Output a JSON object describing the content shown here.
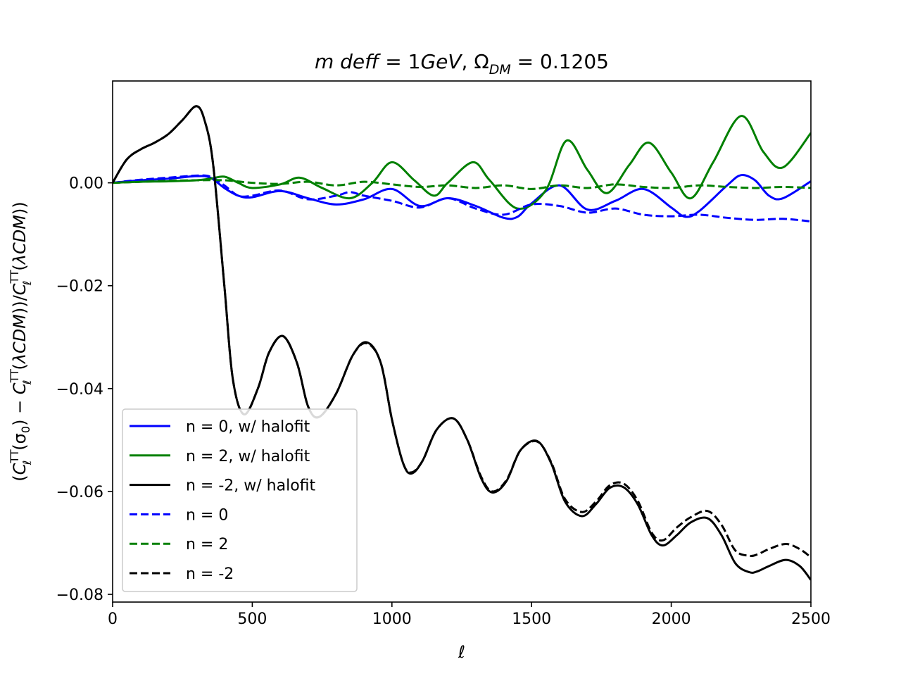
{
  "chart_data": {
    "type": "line",
    "title": "m deff = 1GeV, Ω_DM = 0.1205",
    "xlabel": "ℓ",
    "ylabel": "(C_ℓ^TT(σ0) − C_ℓ^TT(λCDM))/C_ℓ^TT(λCDM))",
    "xlim": [
      0,
      2500
    ],
    "ylim": [
      -0.0815,
      0.0198
    ],
    "xticks": [
      0,
      500,
      1000,
      1500,
      2000,
      2500
    ],
    "xtick_labels": [
      "0",
      "500",
      "1000",
      "1500",
      "2000",
      "2500"
    ],
    "yticks": [
      0.0,
      -0.02,
      -0.04,
      -0.06,
      -0.08
    ],
    "ytick_labels": [
      "0.00",
      "−0.02",
      "−0.04",
      "−0.06",
      "−0.08"
    ],
    "grid": false,
    "legend_position": "lower-left",
    "series": [
      {
        "name": "n = 0, w/ halofit",
        "color": "#0000ff",
        "dash": "solid",
        "x": [
          0,
          100,
          200,
          300,
          350,
          400,
          450,
          500,
          600,
          700,
          800,
          900,
          1000,
          1100,
          1200,
          1300,
          1400,
          1450,
          1500,
          1600,
          1700,
          1800,
          1900,
          2000,
          2050,
          2100,
          2200,
          2250,
          2300,
          2350,
          2400,
          2500
        ],
        "y": [
          0.0,
          0.0005,
          0.0008,
          0.0013,
          0.001,
          -0.001,
          -0.0025,
          -0.0028,
          -0.0016,
          -0.003,
          -0.0042,
          -0.0032,
          -0.0012,
          -0.0045,
          -0.003,
          -0.0045,
          -0.0068,
          -0.0066,
          -0.004,
          -0.0005,
          -0.0052,
          -0.0035,
          -0.0012,
          -0.0048,
          -0.0066,
          -0.0055,
          -0.0005,
          0.0015,
          0.0005,
          -0.0025,
          -0.003,
          0.0003
        ]
      },
      {
        "name": "n = 2, w/ halofit",
        "color": "#008000",
        "dash": "solid",
        "x": [
          0,
          100,
          200,
          300,
          350,
          400,
          450,
          500,
          600,
          670,
          750,
          850,
          930,
          1000,
          1080,
          1150,
          1200,
          1290,
          1350,
          1450,
          1550,
          1625,
          1700,
          1770,
          1850,
          1920,
          2000,
          2070,
          2150,
          2250,
          2330,
          2400,
          2500
        ],
        "y": [
          0.0,
          0.0002,
          0.0003,
          0.0005,
          0.0008,
          0.0012,
          0.0,
          -0.001,
          -0.0003,
          0.001,
          -0.001,
          -0.003,
          0.0,
          0.004,
          0.0005,
          -0.0025,
          0.0,
          0.004,
          0.0005,
          -0.005,
          -0.0015,
          0.0082,
          0.0025,
          -0.002,
          0.0035,
          0.0078,
          0.002,
          -0.003,
          0.004,
          0.013,
          0.006,
          0.003,
          0.0097
        ]
      },
      {
        "name": "n = -2, w/ halofit",
        "color": "#000000",
        "dash": "solid",
        "x": [
          0,
          50,
          100,
          150,
          200,
          250,
          300,
          330,
          360,
          400,
          430,
          470,
          520,
          560,
          610,
          660,
          700,
          740,
          800,
          860,
          910,
          960,
          1000,
          1040,
          1070,
          1110,
          1160,
          1220,
          1270,
          1320,
          1360,
          1410,
          1460,
          1520,
          1570,
          1620,
          1680,
          1730,
          1780,
          1830,
          1880,
          1930,
          1970,
          2020,
          2070,
          2130,
          2180,
          2230,
          2280,
          2310,
          2350,
          2410,
          2460,
          2500
        ],
        "y": [
          0.0,
          0.0045,
          0.0065,
          0.0078,
          0.0095,
          0.0122,
          0.0149,
          0.012,
          0.0035,
          -0.02,
          -0.038,
          -0.045,
          -0.04,
          -0.033,
          -0.0298,
          -0.035,
          -0.0435,
          -0.0455,
          -0.041,
          -0.0335,
          -0.031,
          -0.035,
          -0.046,
          -0.0545,
          -0.0565,
          -0.054,
          -0.048,
          -0.0458,
          -0.05,
          -0.0575,
          -0.0602,
          -0.058,
          -0.052,
          -0.0502,
          -0.0545,
          -0.062,
          -0.0648,
          -0.0625,
          -0.0593,
          -0.0592,
          -0.0625,
          -0.0685,
          -0.0705,
          -0.0685,
          -0.066,
          -0.0652,
          -0.0685,
          -0.074,
          -0.0757,
          -0.0755,
          -0.0745,
          -0.0733,
          -0.0745,
          -0.0772
        ]
      },
      {
        "name": "n = 0",
        "color": "#0000ff",
        "dash": "dashed",
        "x": [
          0,
          100,
          200,
          300,
          350,
          400,
          450,
          500,
          600,
          700,
          800,
          850,
          900,
          1000,
          1100,
          1200,
          1300,
          1400,
          1500,
          1600,
          1700,
          1800,
          1900,
          2000,
          2100,
          2200,
          2300,
          2400,
          2500
        ],
        "y": [
          0.0,
          0.0006,
          0.001,
          0.0014,
          0.0012,
          -0.0005,
          -0.0025,
          -0.0025,
          -0.0015,
          -0.0032,
          -0.0025,
          -0.0018,
          -0.0025,
          -0.0035,
          -0.0048,
          -0.003,
          -0.005,
          -0.0062,
          -0.0042,
          -0.0045,
          -0.0058,
          -0.005,
          -0.0062,
          -0.0065,
          -0.0062,
          -0.0068,
          -0.0072,
          -0.007,
          -0.0075
        ]
      },
      {
        "name": "n = 2",
        "color": "#008000",
        "dash": "dashed",
        "x": [
          0,
          100,
          200,
          300,
          400,
          500,
          600,
          700,
          800,
          900,
          1000,
          1100,
          1200,
          1300,
          1400,
          1500,
          1600,
          1700,
          1800,
          1900,
          2000,
          2100,
          2200,
          2300,
          2400,
          2500
        ],
        "y": [
          0.0,
          0.0002,
          0.0004,
          0.0005,
          0.0005,
          0.0,
          -0.0002,
          0.0002,
          -0.0005,
          0.0002,
          -0.0003,
          -0.0008,
          -0.0005,
          -0.001,
          -0.0005,
          -0.0012,
          -0.0005,
          -0.001,
          -0.0003,
          -0.0008,
          -0.001,
          -0.0005,
          -0.0008,
          -0.001,
          -0.0008,
          -0.001
        ]
      },
      {
        "name": "n = -2",
        "color": "#000000",
        "dash": "dashed",
        "x": [
          0,
          50,
          100,
          150,
          200,
          250,
          300,
          330,
          360,
          400,
          430,
          470,
          520,
          560,
          610,
          660,
          700,
          740,
          800,
          860,
          910,
          960,
          1000,
          1040,
          1070,
          1110,
          1160,
          1220,
          1270,
          1320,
          1360,
          1410,
          1460,
          1520,
          1570,
          1620,
          1680,
          1730,
          1780,
          1830,
          1880,
          1930,
          1970,
          2020,
          2070,
          2130,
          2180,
          2230,
          2280,
          2310,
          2350,
          2410,
          2460,
          2500
        ],
        "y": [
          0.0,
          0.0045,
          0.0065,
          0.0078,
          0.0095,
          0.0122,
          0.0149,
          0.012,
          0.0035,
          -0.02,
          -0.038,
          -0.045,
          -0.04,
          -0.033,
          -0.0298,
          -0.035,
          -0.0435,
          -0.0455,
          -0.041,
          -0.0335,
          -0.0312,
          -0.035,
          -0.046,
          -0.0545,
          -0.0563,
          -0.054,
          -0.048,
          -0.0458,
          -0.05,
          -0.0572,
          -0.06,
          -0.0578,
          -0.052,
          -0.0503,
          -0.0543,
          -0.0615,
          -0.064,
          -0.062,
          -0.0588,
          -0.0585,
          -0.0618,
          -0.068,
          -0.0695,
          -0.067,
          -0.065,
          -0.0638,
          -0.0665,
          -0.0715,
          -0.0725,
          -0.0722,
          -0.0712,
          -0.0702,
          -0.0712,
          -0.0728
        ]
      }
    ]
  }
}
